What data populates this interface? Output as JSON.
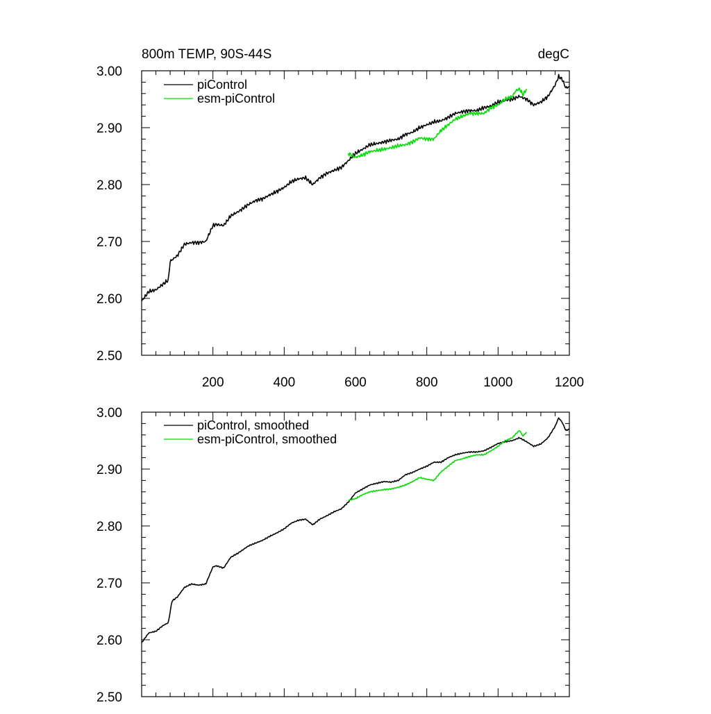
{
  "chart_data": [
    {
      "type": "line",
      "title": "800m TEMP, 90S-44S",
      "units_label": "degC",
      "xlabel": "",
      "ylabel": "",
      "xlim": [
        0,
        1200
      ],
      "ylim": [
        2.5,
        3.0
      ],
      "x_ticks": [
        200,
        400,
        600,
        800,
        1000,
        1200
      ],
      "x_tick_labels": [
        "200",
        "400",
        "600",
        "800",
        "1000",
        "1200"
      ],
      "y_ticks": [
        2.5,
        2.6,
        2.7,
        2.8,
        2.9,
        3.0
      ],
      "y_tick_labels": [
        "2.50",
        "2.60",
        "2.70",
        "2.80",
        "2.90",
        "3.00"
      ],
      "grid": false,
      "legend_position": "top-left",
      "series": [
        {
          "name": "piControl",
          "color": "#000000",
          "x": [
            0,
            20,
            40,
            60,
            75,
            80,
            100,
            120,
            140,
            160,
            180,
            200,
            210,
            230,
            250,
            270,
            300,
            320,
            340,
            360,
            380,
            400,
            420,
            440,
            460,
            480,
            500,
            520,
            540,
            560,
            580,
            600,
            620,
            640,
            660,
            680,
            700,
            720,
            740,
            760,
            780,
            800,
            820,
            840,
            860,
            880,
            900,
            920,
            940,
            960,
            980,
            1000,
            1020,
            1040,
            1060,
            1080,
            1100,
            1120,
            1140,
            1150,
            1160,
            1170,
            1180,
            1190,
            1200
          ],
          "values": [
            2.595,
            2.612,
            2.615,
            2.625,
            2.632,
            2.665,
            2.675,
            2.695,
            2.698,
            2.698,
            2.7,
            2.728,
            2.73,
            2.728,
            2.745,
            2.752,
            2.765,
            2.772,
            2.775,
            2.782,
            2.788,
            2.795,
            2.805,
            2.81,
            2.812,
            2.8,
            2.812,
            2.82,
            2.825,
            2.83,
            2.842,
            2.855,
            2.862,
            2.87,
            2.872,
            2.875,
            2.878,
            2.88,
            2.888,
            2.892,
            2.9,
            2.905,
            2.91,
            2.912,
            2.918,
            2.925,
            2.928,
            2.93,
            2.93,
            2.935,
            2.938,
            2.945,
            2.948,
            2.95,
            2.955,
            2.95,
            2.94,
            2.945,
            2.955,
            2.965,
            2.975,
            2.99,
            2.985,
            2.97,
            2.972
          ]
        },
        {
          "name": "esm-piControl",
          "color": "#00dd00",
          "x": [
            580,
            600,
            620,
            640,
            660,
            680,
            700,
            720,
            740,
            760,
            780,
            800,
            820,
            840,
            860,
            880,
            900,
            920,
            940,
            960,
            980,
            1000,
            1020,
            1040,
            1050,
            1060,
            1070,
            1080
          ],
          "values": [
            2.855,
            2.848,
            2.852,
            2.858,
            2.86,
            2.862,
            2.865,
            2.868,
            2.87,
            2.875,
            2.882,
            2.88,
            2.88,
            2.895,
            2.905,
            2.915,
            2.92,
            2.925,
            2.925,
            2.925,
            2.935,
            2.94,
            2.95,
            2.955,
            2.965,
            2.968,
            2.958,
            2.968
          ]
        }
      ]
    },
    {
      "type": "line",
      "title": "",
      "xlabel": "",
      "ylabel": "",
      "xlim": [
        0,
        1200
      ],
      "ylim": [
        2.5,
        3.0
      ],
      "y_ticks": [
        2.5,
        2.6,
        2.7,
        2.8,
        2.9,
        3.0
      ],
      "y_tick_labels": [
        "2.50",
        "2.60",
        "2.70",
        "2.80",
        "2.90",
        "3.00"
      ],
      "grid": false,
      "legend_position": "top-left",
      "series": [
        {
          "name": "piControl, smoothed",
          "color": "#000000",
          "x": [
            0,
            20,
            40,
            60,
            75,
            85,
            100,
            120,
            140,
            160,
            180,
            200,
            210,
            230,
            250,
            270,
            300,
            320,
            340,
            360,
            380,
            400,
            420,
            440,
            460,
            480,
            500,
            520,
            540,
            560,
            580,
            600,
            620,
            640,
            660,
            680,
            700,
            720,
            740,
            760,
            780,
            800,
            820,
            840,
            860,
            880,
            900,
            920,
            940,
            960,
            980,
            1000,
            1020,
            1040,
            1060,
            1080,
            1100,
            1120,
            1140,
            1150,
            1160,
            1170,
            1180,
            1190,
            1200
          ],
          "values": [
            2.595,
            2.612,
            2.615,
            2.625,
            2.63,
            2.668,
            2.675,
            2.692,
            2.698,
            2.696,
            2.698,
            2.728,
            2.73,
            2.726,
            2.745,
            2.752,
            2.765,
            2.77,
            2.775,
            2.782,
            2.788,
            2.795,
            2.805,
            2.81,
            2.812,
            2.802,
            2.812,
            2.818,
            2.825,
            2.83,
            2.842,
            2.858,
            2.865,
            2.872,
            2.875,
            2.878,
            2.877,
            2.88,
            2.89,
            2.894,
            2.9,
            2.905,
            2.912,
            2.912,
            2.92,
            2.925,
            2.928,
            2.93,
            2.93,
            2.932,
            2.938,
            2.945,
            2.948,
            2.95,
            2.955,
            2.948,
            2.94,
            2.944,
            2.955,
            2.965,
            2.975,
            2.99,
            2.982,
            2.968,
            2.97
          ]
        },
        {
          "name": "esm-piControl, smoothed",
          "color": "#00dd00",
          "x": [
            580,
            600,
            620,
            640,
            660,
            680,
            700,
            720,
            740,
            760,
            780,
            800,
            820,
            840,
            860,
            880,
            900,
            920,
            940,
            960,
            980,
            1000,
            1020,
            1040,
            1050,
            1060,
            1070,
            1080
          ],
          "values": [
            2.845,
            2.848,
            2.855,
            2.86,
            2.862,
            2.864,
            2.865,
            2.868,
            2.872,
            2.878,
            2.885,
            2.882,
            2.88,
            2.895,
            2.905,
            2.915,
            2.918,
            2.922,
            2.925,
            2.925,
            2.932,
            2.94,
            2.95,
            2.955,
            2.962,
            2.968,
            2.958,
            2.965
          ]
        }
      ]
    }
  ]
}
